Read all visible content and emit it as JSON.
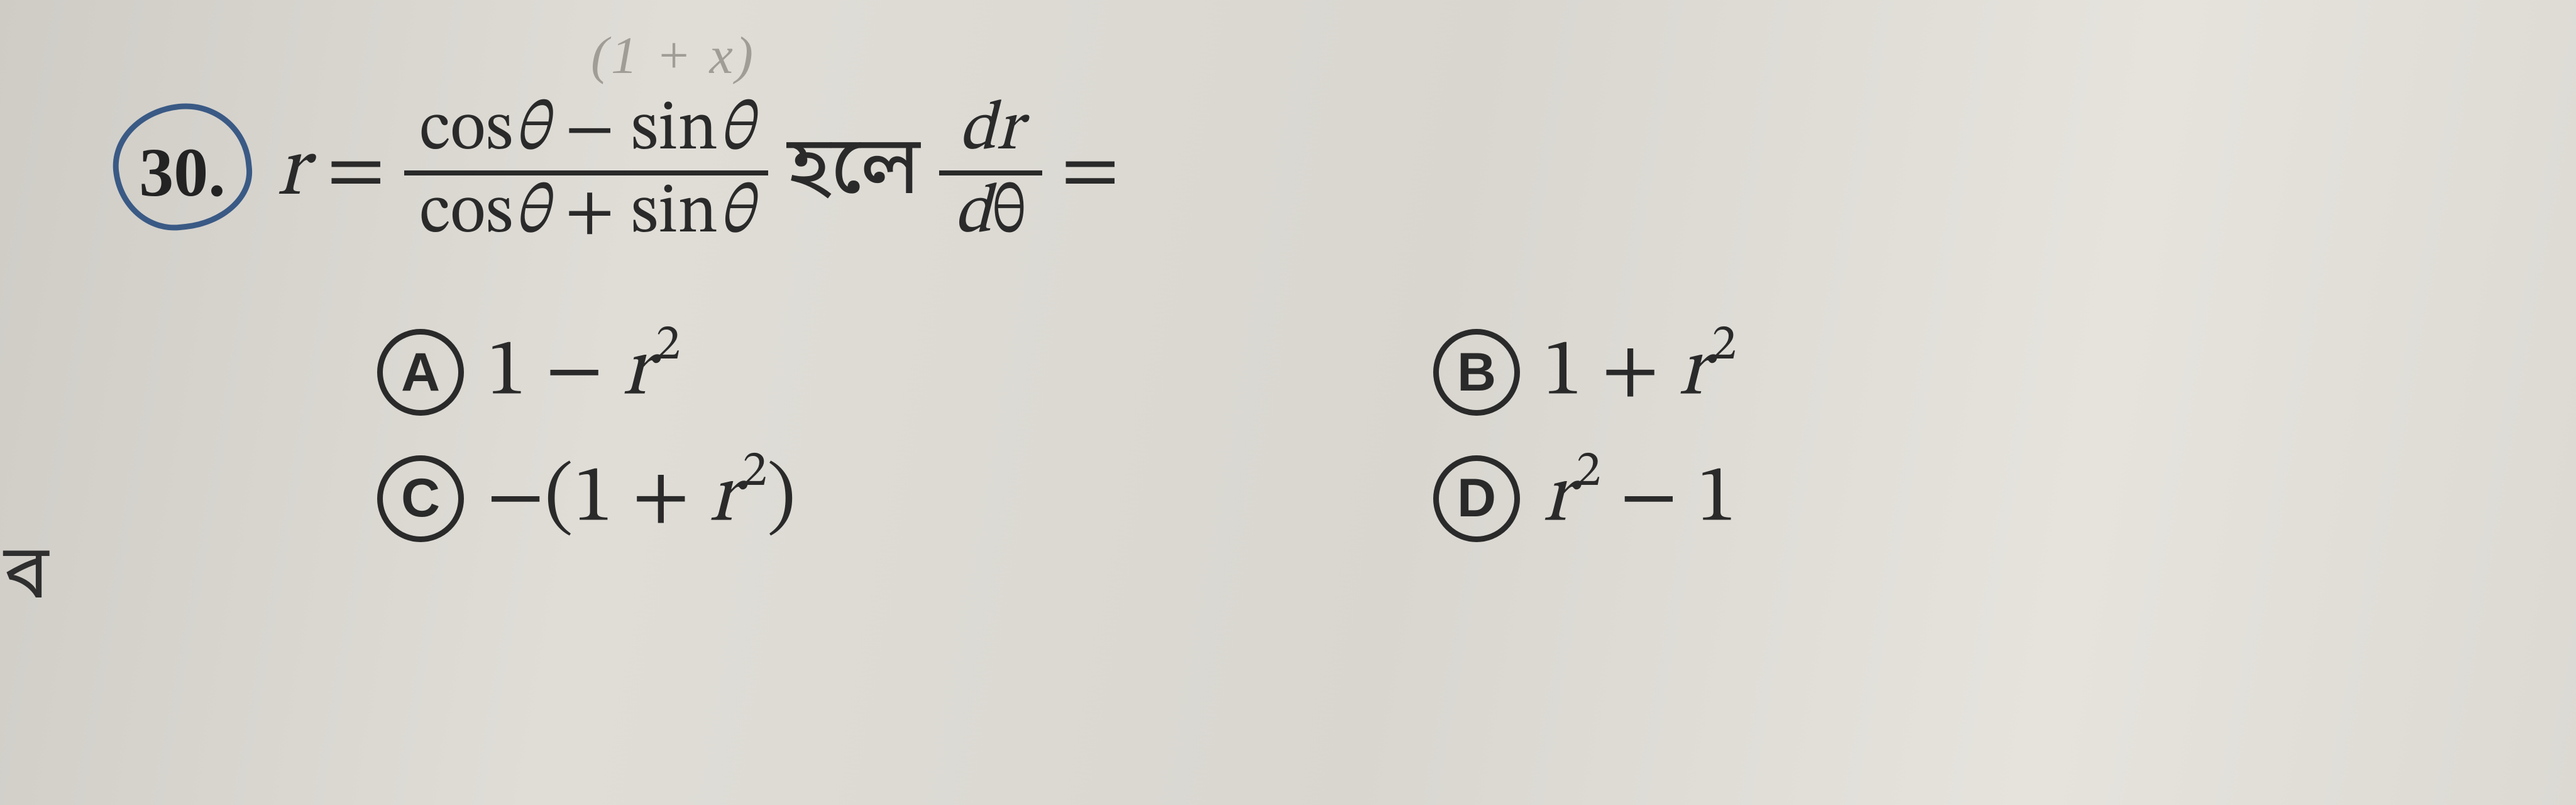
{
  "top_remnant": "(1 + x)",
  "question": {
    "number": "30.",
    "lhs_var": "r",
    "equals": "=",
    "frac_main": {
      "num_a": "cos",
      "num_var_a": "θ",
      "num_op": "−",
      "num_b": "sin",
      "num_var_b": "θ",
      "den_a": "cos",
      "den_var_a": "θ",
      "den_op": "+",
      "den_b": "sin",
      "den_var_b": "θ"
    },
    "connector": "হলে",
    "frac_deriv": {
      "num_a": "d",
      "num_b": "r",
      "den_a": "d",
      "den_b": "θ"
    },
    "trailing_eq": "="
  },
  "options": {
    "a": {
      "label": "A",
      "pre": "1 − ",
      "var": "r",
      "sup": "2"
    },
    "b": {
      "label": "B",
      "pre": "1 + ",
      "var": "r",
      "sup": "2"
    },
    "c": {
      "label": "C",
      "pre": "−(1 + ",
      "var": "r",
      "sup": "2",
      "post": ")"
    },
    "d": {
      "label": "D",
      "var": "r",
      "sup": "2",
      "post": " − 1"
    }
  },
  "side_char": "ব",
  "colors": {
    "circle": "#3a5a85",
    "text": "#2a2a2a",
    "background": "#d8d5d0"
  }
}
